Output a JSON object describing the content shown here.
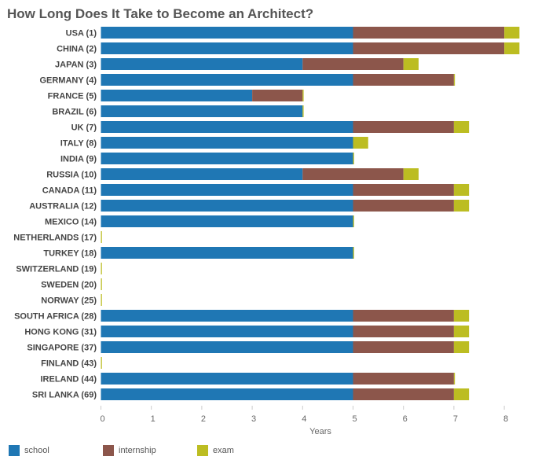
{
  "chart_data": {
    "type": "bar",
    "orientation": "horizontal",
    "stacked": true,
    "title": "How Long Does It Take to Become an Architect?",
    "xlabel": "Years",
    "ylabel": "",
    "xlim": [
      0,
      8.3
    ],
    "xticks": [
      0,
      1,
      2,
      3,
      4,
      5,
      6,
      7,
      8
    ],
    "grid": false,
    "legend_position": "bottom-left",
    "categories": [
      "USA (1)",
      "CHINA (2)",
      "JAPAN (3)",
      "GERMANY (4)",
      "FRANCE (5)",
      "BRAZIL (6)",
      "UK (7)",
      "ITALY (8)",
      "INDIA (9)",
      "RUSSIA (10)",
      "CANADA (11)",
      "AUSTRALIA (12)",
      "MEXICO (14)",
      "NETHERLANDS (17)",
      "TURKEY (18)",
      "SWITZERLAND (19)",
      "SWEDEN (20)",
      "NORWAY (25)",
      "SOUTH AFRICA (28)",
      "HONG KONG (31)",
      "SINGAPORE (37)",
      "FINLAND (43)",
      "IRELAND (44)",
      "SRI LANKA (69)"
    ],
    "series": [
      {
        "name": "school",
        "color": "#1f77b4",
        "values": [
          5,
          5,
          4,
          5,
          3,
          4,
          5,
          5,
          5,
          4,
          5,
          5,
          5,
          0,
          5,
          0,
          0,
          0,
          5,
          5,
          5,
          0,
          5,
          5
        ]
      },
      {
        "name": "internship",
        "color": "#8c564b",
        "values": [
          3,
          3,
          2,
          2,
          1,
          0,
          2,
          0,
          0,
          2,
          2,
          2,
          0,
          0,
          0,
          0,
          0,
          0,
          2,
          2,
          2,
          0,
          2,
          2
        ]
      },
      {
        "name": "exam",
        "color": "#bcbd22",
        "values": [
          0.3,
          0.3,
          0.3,
          0.02,
          0.02,
          0.02,
          0.3,
          0.3,
          0.02,
          0.3,
          0.3,
          0.3,
          0.02,
          0.02,
          0.02,
          0.02,
          0.02,
          0.02,
          0.3,
          0.3,
          0.3,
          0.02,
          0.02,
          0.3
        ]
      }
    ]
  }
}
